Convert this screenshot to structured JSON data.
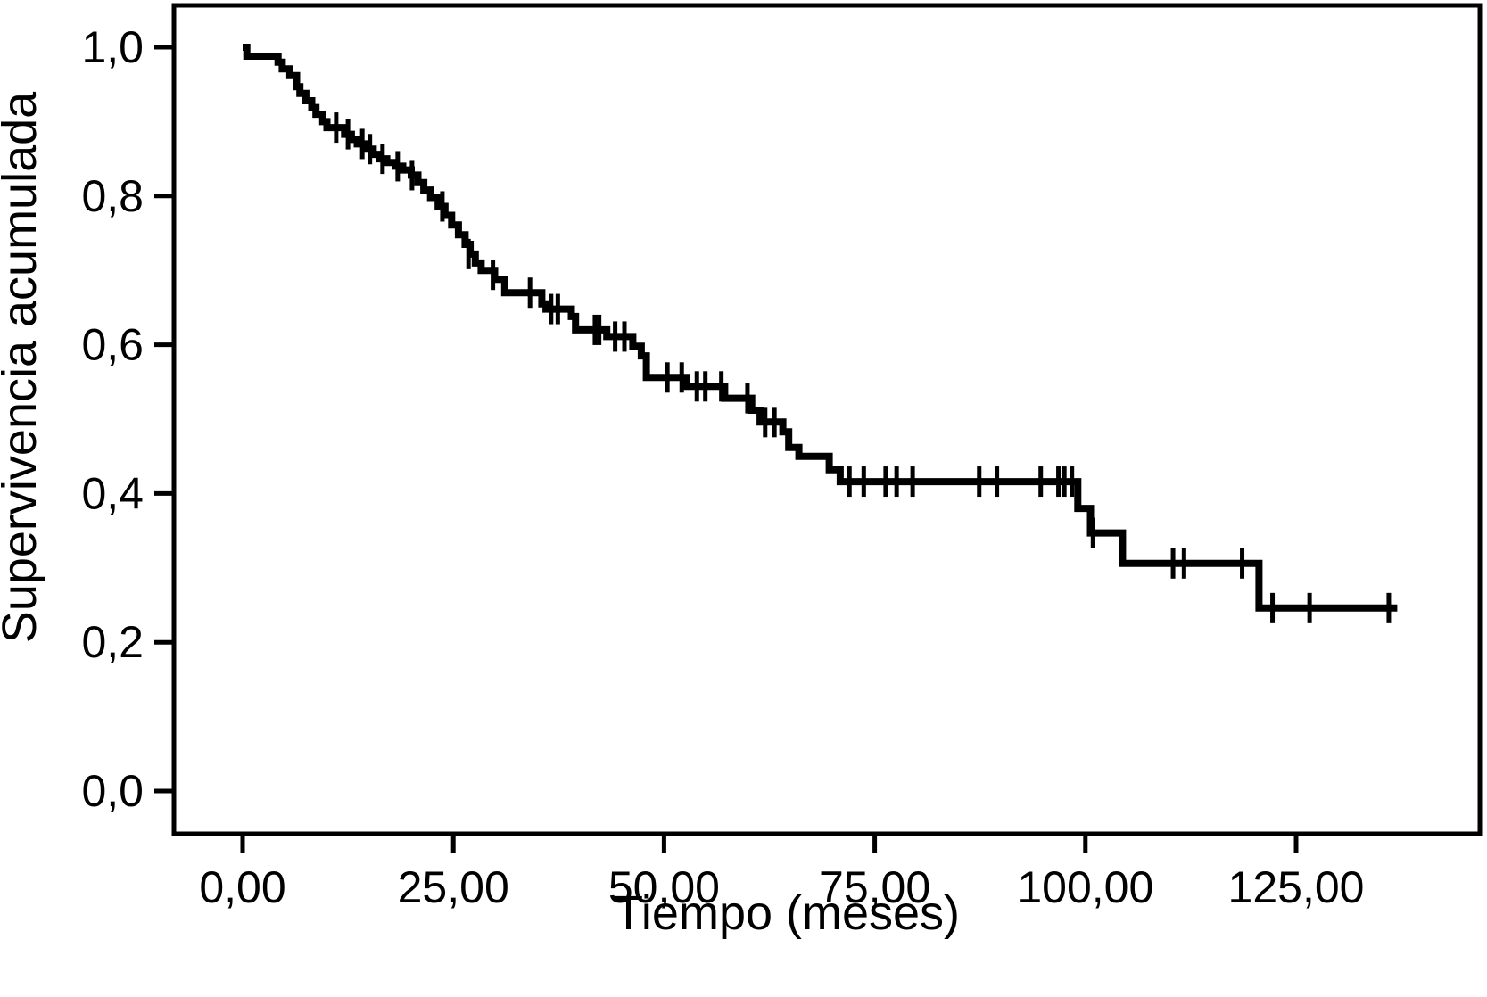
{
  "page": {
    "background_color": "#ffffff",
    "foreground_color": "#000000"
  },
  "chart_data": {
    "type": "line",
    "subtype": "kaplan_meier_step_function",
    "title": "",
    "xlabel": "Tiempo (meses)",
    "ylabel": "Supervivencia acumulada",
    "legend": "none",
    "grid": false,
    "line_color": "#000000",
    "background_color": "#ffffff",
    "xlim": [
      0,
      145
    ],
    "ylim": [
      0,
      1.05
    ],
    "x_ticks": [
      {
        "value": 0,
        "label": "0,00"
      },
      {
        "value": 25,
        "label": "25,00"
      },
      {
        "value": 50,
        "label": "50,00"
      },
      {
        "value": 75,
        "label": "75,00"
      },
      {
        "value": 100,
        "label": "100,00"
      },
      {
        "value": 125,
        "label": "125,00"
      }
    ],
    "y_ticks": [
      {
        "value": 0.0,
        "label": "0,0"
      },
      {
        "value": 0.2,
        "label": "0,2"
      },
      {
        "value": 0.4,
        "label": "0,4"
      },
      {
        "value": 0.6,
        "label": "0,6"
      },
      {
        "value": 0.8,
        "label": "0,8"
      },
      {
        "value": 1.0,
        "label": "1,0"
      }
    ],
    "curve_end_time": 137,
    "steps": [
      [
        0,
        1.0
      ],
      [
        0.5,
        0.988
      ],
      [
        4.2,
        0.98
      ],
      [
        4.7,
        0.971
      ],
      [
        5.6,
        0.962
      ],
      [
        6.4,
        0.947
      ],
      [
        6.8,
        0.938
      ],
      [
        7.5,
        0.928
      ],
      [
        8.2,
        0.919
      ],
      [
        8.7,
        0.91
      ],
      [
        9.5,
        0.9
      ],
      [
        10.0,
        0.892
      ],
      [
        12.1,
        0.883
      ],
      [
        12.9,
        0.876
      ],
      [
        13.6,
        0.87
      ],
      [
        14.8,
        0.863
      ],
      [
        15.5,
        0.856
      ],
      [
        16.3,
        0.85
      ],
      [
        17.1,
        0.845
      ],
      [
        18.1,
        0.84
      ],
      [
        19.0,
        0.835
      ],
      [
        20.0,
        0.828
      ],
      [
        20.8,
        0.818
      ],
      [
        21.5,
        0.808
      ],
      [
        22.3,
        0.798
      ],
      [
        23.2,
        0.786
      ],
      [
        24.0,
        0.774
      ],
      [
        24.8,
        0.761
      ],
      [
        25.6,
        0.748
      ],
      [
        26.4,
        0.735
      ],
      [
        27.0,
        0.722
      ],
      [
        27.6,
        0.71
      ],
      [
        28.3,
        0.7
      ],
      [
        29.9,
        0.688
      ],
      [
        31.1,
        0.67
      ],
      [
        35.5,
        0.655
      ],
      [
        36.0,
        0.648
      ],
      [
        39.0,
        0.638
      ],
      [
        39.5,
        0.62
      ],
      [
        43.2,
        0.611
      ],
      [
        46.3,
        0.598
      ],
      [
        47.3,
        0.585
      ],
      [
        47.9,
        0.556
      ],
      [
        52.7,
        0.544
      ],
      [
        57.2,
        0.528
      ],
      [
        60.4,
        0.512
      ],
      [
        61.4,
        0.496
      ],
      [
        64.1,
        0.483
      ],
      [
        64.8,
        0.462
      ],
      [
        66.0,
        0.45
      ],
      [
        69.6,
        0.432
      ],
      [
        70.9,
        0.416
      ],
      [
        99.1,
        0.38
      ],
      [
        100.6,
        0.347
      ],
      [
        104.4,
        0.306
      ],
      [
        120.6,
        0.246
      ]
    ],
    "censor_marks": [
      [
        11.1,
        0.892
      ],
      [
        12.5,
        0.883
      ],
      [
        14.2,
        0.87
      ],
      [
        15.1,
        0.863
      ],
      [
        16.6,
        0.85
      ],
      [
        18.4,
        0.84
      ],
      [
        20.1,
        0.828
      ],
      [
        23.7,
        0.786
      ],
      [
        26.8,
        0.722
      ],
      [
        29.7,
        0.694
      ],
      [
        34.1,
        0.67
      ],
      [
        36.6,
        0.648
      ],
      [
        37.4,
        0.648
      ],
      [
        41.8,
        0.62
      ],
      [
        42.3,
        0.62
      ],
      [
        44.2,
        0.611
      ],
      [
        45.3,
        0.611
      ],
      [
        50.4,
        0.556
      ],
      [
        52.1,
        0.556
      ],
      [
        53.9,
        0.544
      ],
      [
        54.9,
        0.544
      ],
      [
        56.8,
        0.544
      ],
      [
        59.9,
        0.528
      ],
      [
        62.0,
        0.496
      ],
      [
        63.1,
        0.496
      ],
      [
        72.0,
        0.416
      ],
      [
        73.7,
        0.416
      ],
      [
        76.3,
        0.416
      ],
      [
        77.6,
        0.416
      ],
      [
        79.5,
        0.416
      ],
      [
        87.4,
        0.416
      ],
      [
        89.5,
        0.416
      ],
      [
        94.7,
        0.416
      ],
      [
        96.8,
        0.416
      ],
      [
        97.5,
        0.416
      ],
      [
        98.4,
        0.416
      ],
      [
        100.9,
        0.347
      ],
      [
        110.4,
        0.306
      ],
      [
        111.7,
        0.306
      ],
      [
        118.6,
        0.306
      ],
      [
        122.2,
        0.246
      ],
      [
        126.6,
        0.246
      ],
      [
        136.0,
        0.246
      ]
    ]
  }
}
